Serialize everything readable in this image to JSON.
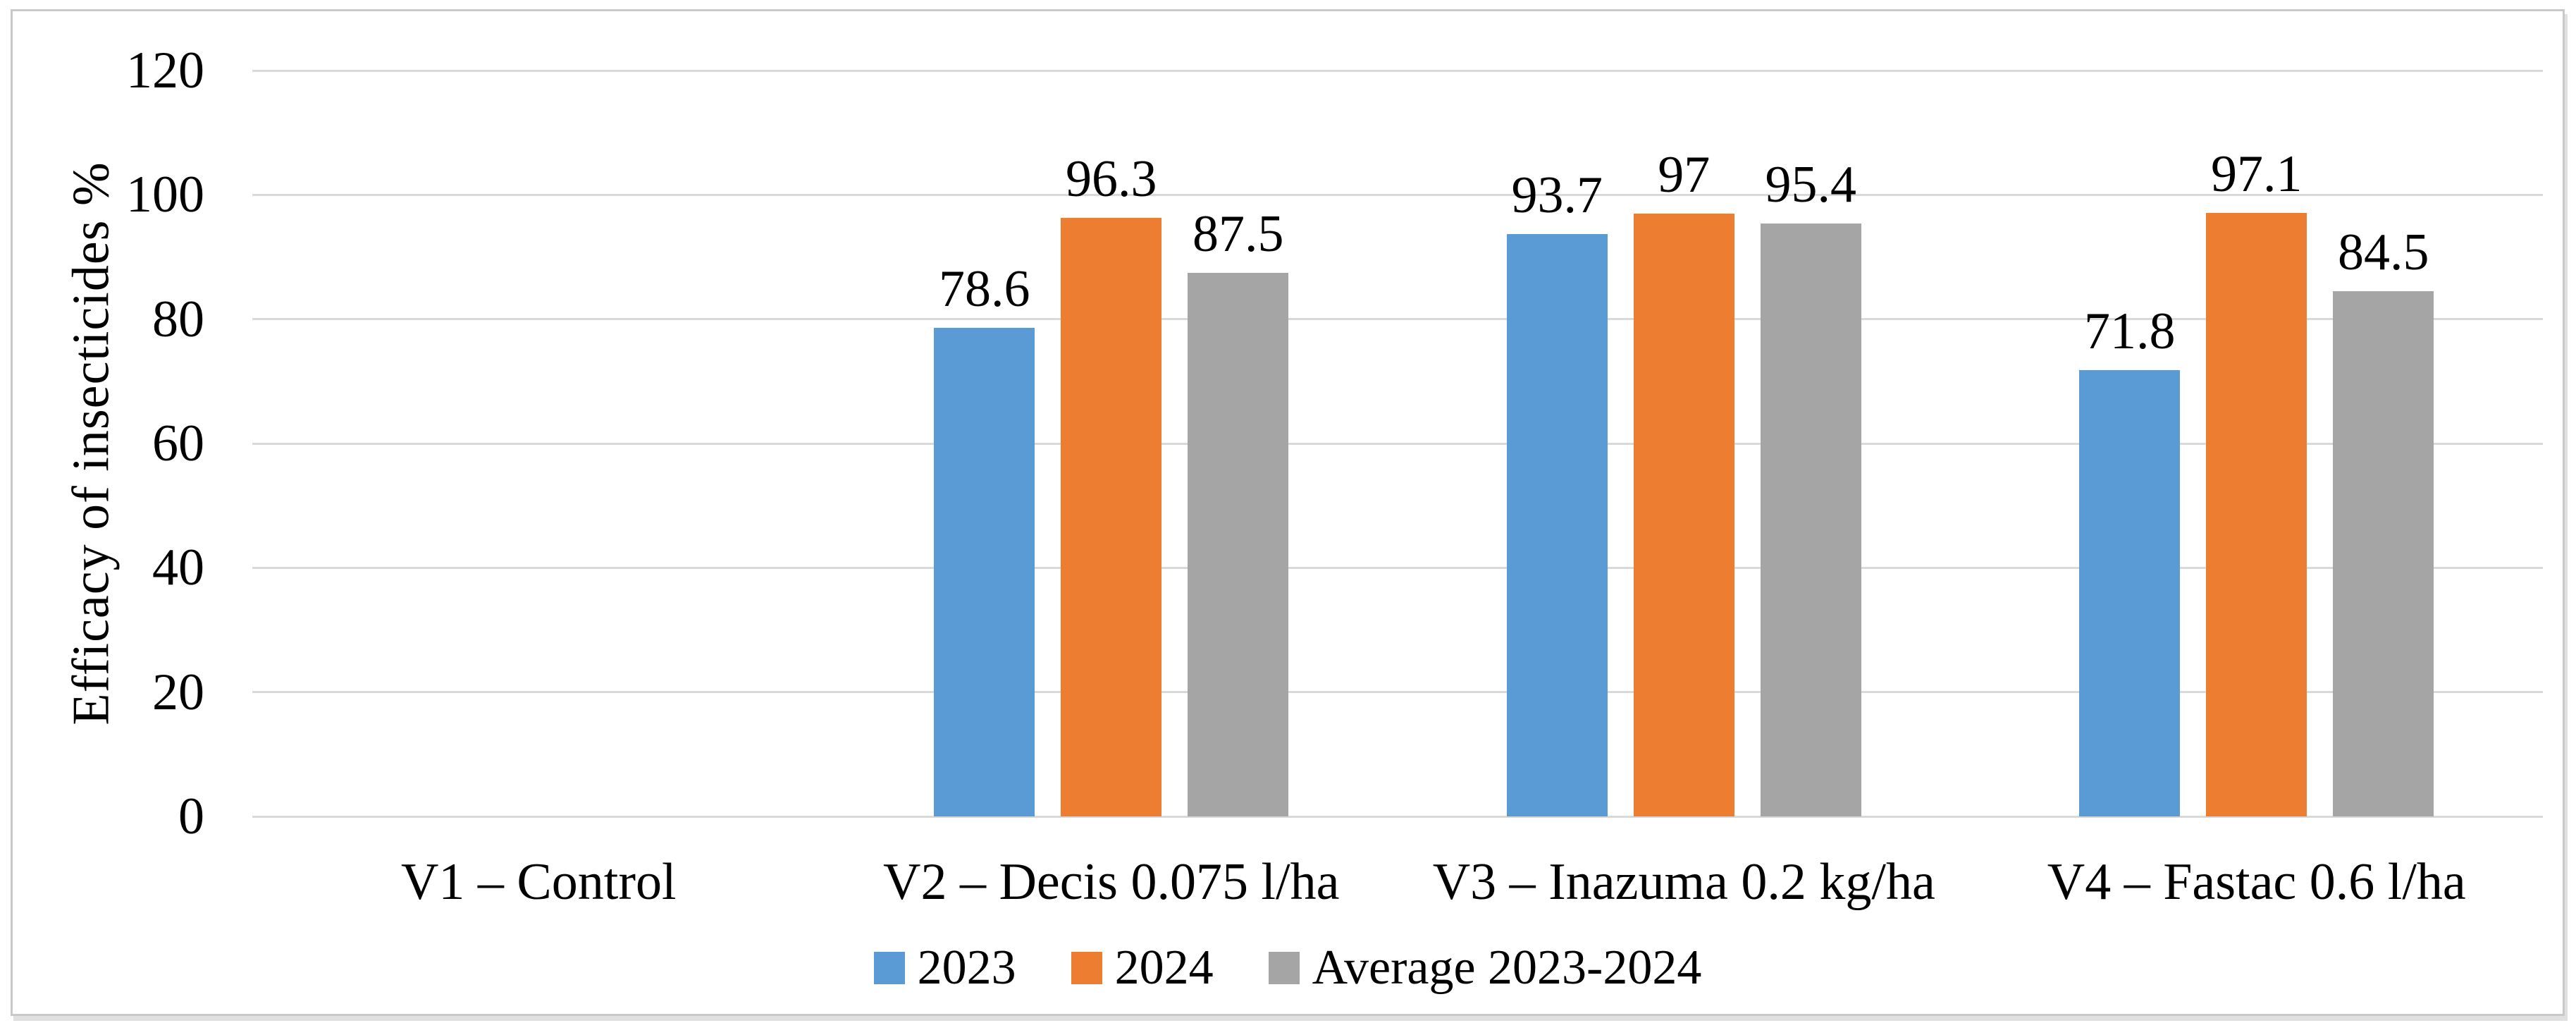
{
  "figure": {
    "background": "#FFFFFF",
    "frame_border_color": "#C9C9C9"
  },
  "chart_data": {
    "type": "bar",
    "title": "",
    "xlabel": "",
    "ylabel": "Efficacy of insecticides %",
    "ylim": [
      0,
      120
    ],
    "yticks": [
      0,
      20,
      40,
      60,
      80,
      100,
      120
    ],
    "grid": true,
    "gridline_color": "#D9D9D9",
    "text_color": "#000000",
    "legend_position": "bottom",
    "data_labels": true,
    "categories": [
      "V1 – Control",
      "V2 – Decis 0.075 l/ha",
      "V3 – Inazuma 0.2 kg/ha",
      "V4 – Fastac 0.6 l/ha"
    ],
    "series": [
      {
        "name": "2023",
        "color": "#5B9BD5",
        "values": [
          0,
          78.6,
          93.7,
          71.8
        ],
        "labels": [
          "",
          "78.6",
          "93.7",
          "71.8"
        ]
      },
      {
        "name": "2024",
        "color": "#ED7D31",
        "values": [
          0,
          96.3,
          97,
          97.1
        ],
        "labels": [
          "",
          "96.3",
          "97",
          "97.1"
        ]
      },
      {
        "name": "Average 2023-2024",
        "color": "#A5A5A5",
        "values": [
          0,
          87.5,
          95.4,
          84.5
        ],
        "labels": [
          "",
          "87.5",
          "95.4",
          "84.5"
        ]
      }
    ]
  }
}
